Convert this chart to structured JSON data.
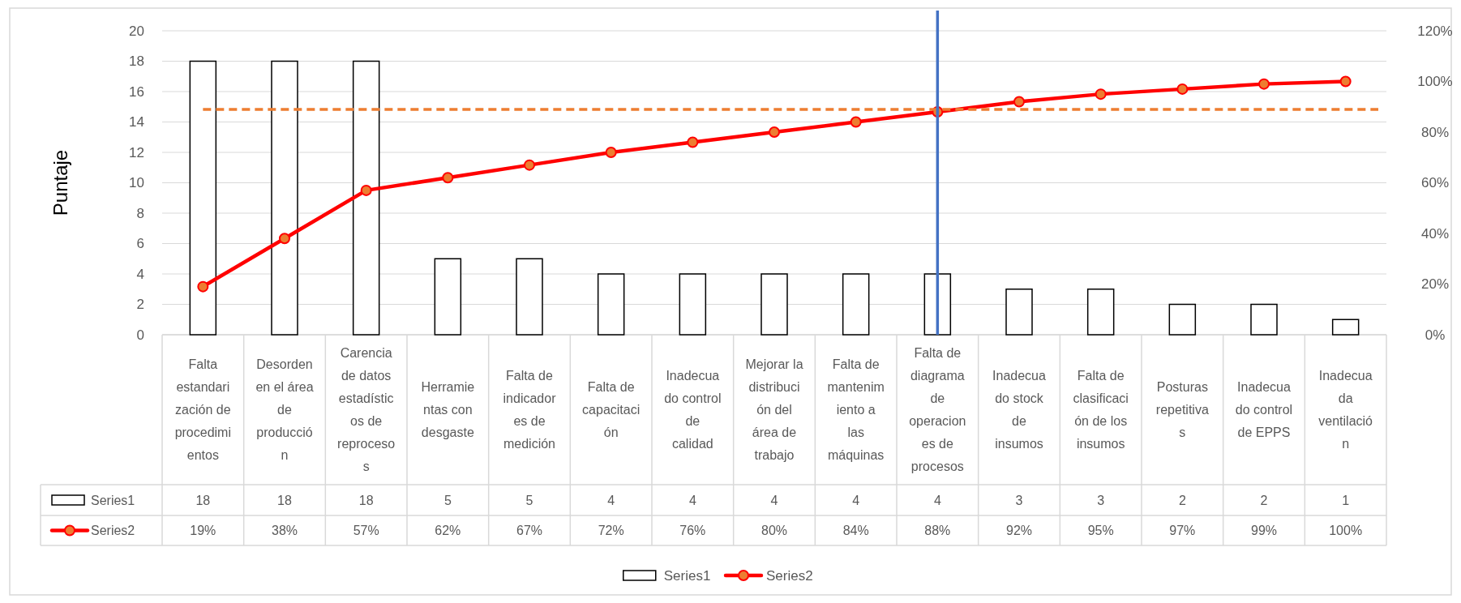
{
  "chart_data": {
    "type": "bar",
    "ylabel": "Puntaje",
    "categories": [
      "Falta estandarización de procedimientos",
      "Desorden en el área de producción",
      "Carencia de datos estadísticos de reprocesos",
      "Herramientas con desgaste",
      "Falta de indicadores de medición",
      "Falta de capacitación",
      "Inadecuado control de calidad",
      "Mejorar la distribución del área de trabajo",
      "Falta de mantenimiento a las máquinas",
      "Falta de diagrama de operaciones de procesos",
      "Inadecuado stock de insumos",
      "Falta de clasificación de los insumos",
      "Posturas repetitivas",
      "Inadecuado control de EPPS",
      "Inadecuada ventilación"
    ],
    "series": [
      {
        "name": "Series1",
        "color": "#ffffff",
        "values": [
          18,
          18,
          18,
          5,
          5,
          4,
          4,
          4,
          4,
          4,
          3,
          3,
          2,
          2,
          1
        ],
        "value_labels": [
          "18",
          "18",
          "18",
          "5",
          "5",
          "4",
          "4",
          "4",
          "4",
          "4",
          "3",
          "3",
          "2",
          "2",
          "1"
        ]
      },
      {
        "name": "Series2",
        "type": "line",
        "axis": "y2",
        "color": "#ff0000",
        "values": [
          19,
          38,
          57,
          62,
          67,
          72,
          76,
          80,
          84,
          88,
          92,
          95,
          97,
          99,
          100
        ],
        "value_labels": [
          "19%",
          "38%",
          "57%",
          "62%",
          "67%",
          "72%",
          "76%",
          "80%",
          "84%",
          "88%",
          "92%",
          "95%",
          "97%",
          "99%",
          "100%"
        ]
      }
    ],
    "ylim": [
      0,
      20
    ],
    "yticks": [
      0,
      2,
      4,
      6,
      8,
      10,
      12,
      14,
      16,
      18,
      20
    ],
    "y2lim": [
      0,
      120
    ],
    "y2ticks": [
      {
        "value": 0,
        "label": "0%"
      },
      {
        "value": 20,
        "label": "20%"
      },
      {
        "value": 40,
        "label": "40%"
      },
      {
        "value": 60,
        "label": "60%"
      },
      {
        "value": 80,
        "label": "80%"
      },
      {
        "value": 100,
        "label": "100%"
      },
      {
        "value": 120,
        "label": "120%"
      }
    ],
    "ref_lines": [
      {
        "axis": "y2",
        "value": 89,
        "color": "#ed7d31",
        "line_style": "dashed"
      },
      {
        "axis": "x",
        "value": "Falta de diagrama de operaciones de procesos",
        "color": "#4472c4",
        "line_style": "solid"
      }
    ],
    "grid": "y",
    "legend": "bottom",
    "marker": "circle",
    "line_style": "solid"
  }
}
